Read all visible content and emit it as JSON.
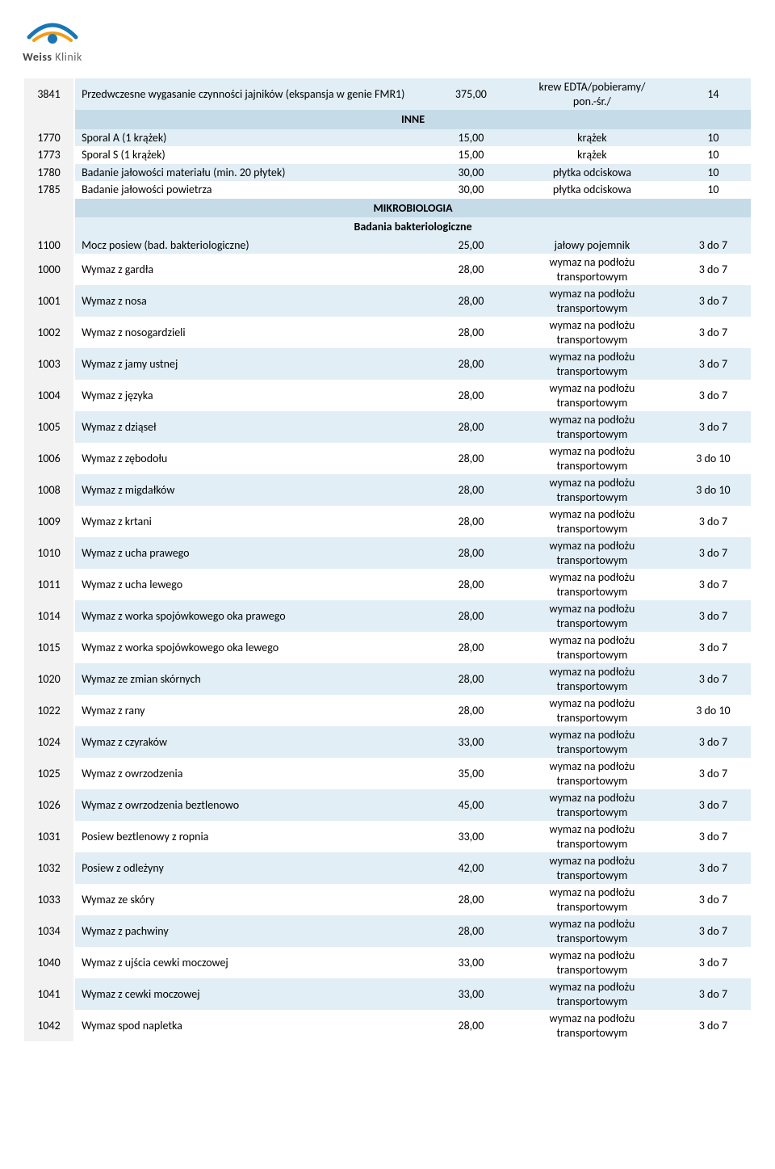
{
  "logo": {
    "brand1": "Weiss",
    "brand2": "Klinik"
  },
  "sections": {
    "inne": "INNE",
    "mikro": "MIKROBIOLOGIA",
    "bakterio": "Badania bakteriologiczne"
  },
  "wymaz_text": {
    "line1": "wymaz na podłożu",
    "line2": "transportowym"
  },
  "rows": [
    {
      "code": "3841",
      "name": "Przedwczesne wygasanie czynności jajników (ekspansja w genie FMR1)",
      "price": "375,00",
      "sample_l1": "krew EDTA/pobieramy/",
      "sample_l2": "pon.-śr./",
      "days": "14",
      "shaded": true,
      "multiline_name": true,
      "multiline_sample": true
    },
    {
      "section": "inne"
    },
    {
      "code": "1770",
      "name": "Sporal A (1 krążek)",
      "price": "15,00",
      "sample": "krążek",
      "days": "10",
      "shaded": true
    },
    {
      "code": "1773",
      "name": "Sporal S (1 krążek)",
      "price": "15,00",
      "sample": "krążek",
      "days": "10",
      "shaded": false
    },
    {
      "code": "1780",
      "name": "Badanie jałowości materiału (min. 20 płytek)",
      "price": "30,00",
      "sample": "płytka odciskowa",
      "days": "10",
      "shaded": true
    },
    {
      "code": "1785",
      "name": "Badanie jałowości powietrza",
      "price": "30,00",
      "sample": "płytka odciskowa",
      "days": "10",
      "shaded": false
    },
    {
      "section": "mikro"
    },
    {
      "subsection": "bakterio"
    },
    {
      "code": "1100",
      "name": "Mocz posiew (bad. bakteriologiczne)",
      "price": "25,00",
      "sample": "jałowy pojemnik",
      "days": "3 do 7",
      "shaded": true
    },
    {
      "code": "1000",
      "name": "Wymaz z gardła",
      "price": "28,00",
      "wymaz": true,
      "days": "3 do 7",
      "shaded": false
    },
    {
      "code": "1001",
      "name": "Wymaz z nosa",
      "price": "28,00",
      "wymaz": true,
      "days": "3 do 7",
      "shaded": true
    },
    {
      "code": "1002",
      "name": "Wymaz z nosogardzieli",
      "price": "28,00",
      "wymaz": true,
      "days": "3 do 7",
      "shaded": false
    },
    {
      "code": "1003",
      "name": "Wymaz z jamy ustnej",
      "price": "28,00",
      "wymaz": true,
      "days": "3 do 7",
      "shaded": true
    },
    {
      "code": "1004",
      "name": "Wymaz z języka",
      "price": "28,00",
      "wymaz": true,
      "days": "3 do 7",
      "shaded": false
    },
    {
      "code": "1005",
      "name": "Wymaz z dziąseł",
      "price": "28,00",
      "wymaz": true,
      "days": "3 do 7",
      "shaded": true
    },
    {
      "code": "1006",
      "name": "Wymaz z zębodołu",
      "price": "28,00",
      "wymaz": true,
      "days": "3 do 10",
      "shaded": false
    },
    {
      "code": "1008",
      "name": "Wymaz z migdałków",
      "price": "28,00",
      "wymaz": true,
      "days": "3 do 10",
      "shaded": true
    },
    {
      "code": "1009",
      "name": "Wymaz z krtani",
      "price": "28,00",
      "wymaz": true,
      "days": "3 do 7",
      "shaded": false
    },
    {
      "code": "1010",
      "name": "Wymaz z ucha prawego",
      "price": "28,00",
      "wymaz": true,
      "days": "3 do 7",
      "shaded": true
    },
    {
      "code": "1011",
      "name": "Wymaz z ucha lewego",
      "price": "28,00",
      "wymaz": true,
      "days": "3 do 7",
      "shaded": false
    },
    {
      "code": "1014",
      "name": "Wymaz z worka spojówkowego oka prawego",
      "price": "28,00",
      "wymaz": true,
      "days": "3 do 7",
      "shaded": true
    },
    {
      "code": "1015",
      "name": "Wymaz z worka spojówkowego oka lewego",
      "price": "28,00",
      "wymaz": true,
      "days": "3 do 7",
      "shaded": false
    },
    {
      "code": "1020",
      "name": "Wymaz ze zmian skórnych",
      "price": "28,00",
      "wymaz": true,
      "days": "3 do 7",
      "shaded": true
    },
    {
      "code": "1022",
      "name": "Wymaz z rany",
      "price": "28,00",
      "wymaz": true,
      "days": "3 do 10",
      "shaded": false
    },
    {
      "code": "1024",
      "name": "Wymaz z czyraków",
      "price": "33,00",
      "wymaz": true,
      "days": "3 do 7",
      "shaded": true
    },
    {
      "code": "1025",
      "name": "Wymaz z owrzodzenia",
      "price": "35,00",
      "wymaz": true,
      "days": "3 do 7",
      "shaded": false
    },
    {
      "code": "1026",
      "name": "Wymaz z owrzodzenia beztlenowo",
      "price": "45,00",
      "wymaz": true,
      "days": "3 do 7",
      "shaded": true
    },
    {
      "code": "1031",
      "name": "Posiew beztlenowy z ropnia",
      "price": "33,00",
      "wymaz": true,
      "days": "3 do 7",
      "shaded": false
    },
    {
      "code": "1032",
      "name": "Posiew z odleżyny",
      "price": "42,00",
      "wymaz": true,
      "days": "3 do 7",
      "shaded": true
    },
    {
      "code": "1033",
      "name": "Wymaz ze skóry",
      "price": "28,00",
      "wymaz": true,
      "days": "3 do 7",
      "shaded": false
    },
    {
      "code": "1034",
      "name": "Wymaz z pachwiny",
      "price": "28,00",
      "wymaz": true,
      "days": "3 do 7",
      "shaded": true
    },
    {
      "code": "1040",
      "name": "Wymaz z ujścia cewki moczowej",
      "price": "33,00",
      "wymaz": true,
      "days": "3 do 7",
      "shaded": false
    },
    {
      "code": "1041",
      "name": "Wymaz z cewki moczowej",
      "price": "33,00",
      "wymaz": true,
      "days": "3 do 7",
      "shaded": true
    },
    {
      "code": "1042",
      "name": "Wymaz spod napletka",
      "price": "28,00",
      "wymaz": true,
      "days": "3 do 7",
      "shaded": false
    }
  ],
  "colors": {
    "shaded_bg": "#e1eef5",
    "section_bg": "#c5dbe8",
    "code_bg": "#f2f2f2",
    "logo_blue": "#1976b5",
    "logo_orange": "#f39c12"
  }
}
